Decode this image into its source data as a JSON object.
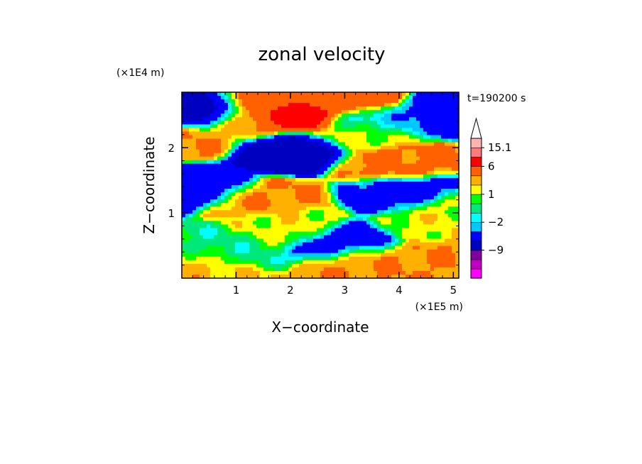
{
  "chart_data": {
    "type": "heatmap",
    "title": "zonal velocity",
    "xlabel": "X−coordinate",
    "ylabel": "Z−coordinate",
    "x_units": "(×1E5 m)",
    "y_units": "(×1E4 m)",
    "timestamp": "t=190200 s",
    "xlim": [
      0,
      5.1
    ],
    "ylim": [
      0,
      2.85
    ],
    "x_ticks": [
      {
        "value": 1,
        "label": "1"
      },
      {
        "value": 2,
        "label": "2"
      },
      {
        "value": 3,
        "label": "3"
      },
      {
        "value": 4,
        "label": "4"
      },
      {
        "value": 5,
        "label": "5"
      }
    ],
    "y_ticks": [
      {
        "value": 1,
        "label": "1"
      },
      {
        "value": 2,
        "label": "2"
      }
    ],
    "colorbar": {
      "levels": [
        -15,
        -12,
        -9,
        -6,
        -3,
        -2,
        -1,
        0,
        1,
        2,
        3,
        6,
        9,
        12,
        15.1
      ],
      "colors": [
        "#ff00ff",
        "#c000c0",
        "#8000a0",
        "#0000c0",
        "#0000ff",
        "#00c8ff",
        "#00ffff",
        "#00e87c",
        "#00ff00",
        "#ffff00",
        "#ffb000",
        "#ff6000",
        "#ff0000",
        "#ff7a7a",
        "#ffb4b4"
      ],
      "tick_labels": [
        {
          "value": 15.1,
          "label": "15.1"
        },
        {
          "value": 6,
          "label": "6"
        },
        {
          "value": 1,
          "label": "1"
        },
        {
          "value": -2,
          "label": "−2"
        },
        {
          "value": -9,
          "label": "−9"
        }
      ],
      "extend": "max"
    },
    "field_features": [
      {
        "x": 0.4,
        "z": 2.55,
        "u": -8
      },
      {
        "x": 1.1,
        "z": 2.35,
        "u": 2.5
      },
      {
        "x": 1.9,
        "z": 2.48,
        "u": 8
      },
      {
        "x": 1.4,
        "z": 2.62,
        "u": 4
      },
      {
        "x": 3.3,
        "z": 2.72,
        "u": 5
      },
      {
        "x": 4.85,
        "z": 2.6,
        "u": -5
      },
      {
        "x": 3.7,
        "z": 2.45,
        "u": -2.5
      },
      {
        "x": 2.1,
        "z": 1.95,
        "u": -6
      },
      {
        "x": 1.95,
        "z": 1.92,
        "u": -9
      },
      {
        "x": 3.2,
        "z": 2.2,
        "u": 1.5
      },
      {
        "x": 3.75,
        "z": 1.75,
        "u": 3.5
      },
      {
        "x": 0.2,
        "z": 2.1,
        "u": 3
      },
      {
        "x": 0.4,
        "z": 1.45,
        "u": -5
      },
      {
        "x": 4.0,
        "z": 1.3,
        "u": -4
      },
      {
        "x": 3.1,
        "z": 0.55,
        "u": -5
      },
      {
        "x": 2.0,
        "z": 0.8,
        "u": 1.5
      },
      {
        "x": 4.6,
        "z": 0.8,
        "u": 1.5
      },
      {
        "x": 5.0,
        "z": 1.0,
        "u": 1.5
      },
      {
        "x": 1.6,
        "z": 1.25,
        "u": 3
      },
      {
        "x": 0.7,
        "z": 0.45,
        "u": -0.5
      },
      {
        "x": 3.5,
        "z": 0.3,
        "u": 3
      },
      {
        "x": 0.2,
        "z": 0.2,
        "u": 2.2
      },
      {
        "x": 4.9,
        "z": 0.35,
        "u": 3
      }
    ]
  }
}
